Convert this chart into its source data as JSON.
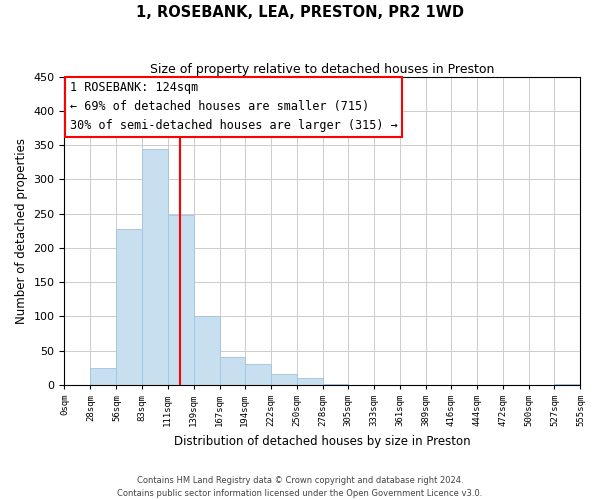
{
  "title": "1, ROSEBANK, LEA, PRESTON, PR2 1WD",
  "subtitle": "Size of property relative to detached houses in Preston",
  "xlabel": "Distribution of detached houses by size in Preston",
  "ylabel": "Number of detached properties",
  "bin_edges": [
    0,
    28,
    56,
    83,
    111,
    139,
    167,
    194,
    222,
    250,
    278,
    305,
    333,
    361,
    389,
    416,
    444,
    472,
    500,
    527,
    555
  ],
  "bar_heights": [
    0,
    25,
    228,
    345,
    248,
    101,
    40,
    30,
    16,
    10,
    1,
    0,
    0,
    0,
    0,
    0,
    0,
    0,
    0,
    1
  ],
  "bar_color": "#c8dff0",
  "bar_edge_color": "#a0c4e0",
  "vline_x": 124,
  "vline_color": "red",
  "annotation_title": "1 ROSEBANK: 124sqm",
  "annotation_line1": "← 69% of detached houses are smaller (715)",
  "annotation_line2": "30% of semi-detached houses are larger (315) →",
  "ylim": [
    0,
    450
  ],
  "yticks": [
    0,
    50,
    100,
    150,
    200,
    250,
    300,
    350,
    400,
    450
  ],
  "tick_labels": [
    "0sqm",
    "28sqm",
    "56sqm",
    "83sqm",
    "111sqm",
    "139sqm",
    "167sqm",
    "194sqm",
    "222sqm",
    "250sqm",
    "278sqm",
    "305sqm",
    "333sqm",
    "361sqm",
    "389sqm",
    "416sqm",
    "444sqm",
    "472sqm",
    "500sqm",
    "527sqm",
    "555sqm"
  ],
  "footer1": "Contains HM Land Registry data © Crown copyright and database right 2024.",
  "footer2": "Contains public sector information licensed under the Open Government Licence v3.0.",
  "background_color": "#ffffff",
  "grid_color": "#cccccc"
}
